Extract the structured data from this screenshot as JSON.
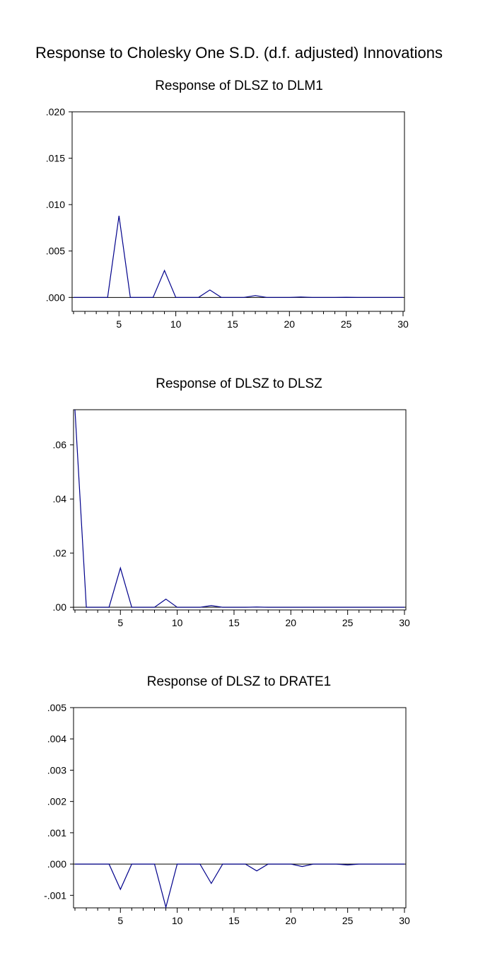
{
  "main_title": "Response to Cholesky One S.D. (d.f. adjusted) Innovations",
  "chart_data": [
    {
      "type": "line",
      "title": "Response of DLSZ to DLM1",
      "xlabel": "",
      "ylabel": "",
      "xlim": [
        1,
        30
      ],
      "ylim": [
        -0.0015,
        0.02
      ],
      "x_ticks": [
        5,
        10,
        15,
        20,
        25,
        30
      ],
      "y_ticks": [
        {
          "value": 0.0,
          "label": ".000"
        },
        {
          "value": 0.005,
          "label": ".005"
        },
        {
          "value": 0.01,
          "label": ".010"
        },
        {
          "value": 0.015,
          "label": ".015"
        },
        {
          "value": 0.02,
          "label": ".020"
        }
      ],
      "grid": false,
      "series": [
        {
          "color": "#00008b",
          "x": [
            1,
            2,
            3,
            4,
            5,
            6,
            7,
            8,
            9,
            10,
            11,
            12,
            13,
            14,
            15,
            16,
            17,
            18,
            19,
            20,
            21,
            22,
            23,
            24,
            25,
            26,
            27,
            28,
            29,
            30
          ],
          "values": [
            0,
            0,
            0,
            0,
            0.0088,
            0,
            0,
            0,
            0.0029,
            0,
            0,
            0,
            0.0008,
            0,
            0,
            0,
            0.0002,
            0,
            0,
            0,
            5e-05,
            0,
            0,
            0,
            2e-05,
            0,
            0,
            0,
            0,
            0
          ]
        }
      ]
    },
    {
      "type": "line",
      "title": "Response of DLSZ to DLSZ",
      "xlabel": "",
      "ylabel": "",
      "xlim": [
        1,
        30
      ],
      "ylim": [
        -0.001,
        0.073
      ],
      "x_ticks": [
        5,
        10,
        15,
        20,
        25,
        30
      ],
      "y_ticks": [
        {
          "value": 0.0,
          "label": ".00"
        },
        {
          "value": 0.02,
          "label": ".02"
        },
        {
          "value": 0.04,
          "label": ".04"
        },
        {
          "value": 0.06,
          "label": ".06"
        }
      ],
      "grid": false,
      "series": [
        {
          "color": "#00008b",
          "x": [
            1,
            2,
            3,
            4,
            5,
            6,
            7,
            8,
            9,
            10,
            11,
            12,
            13,
            14,
            15,
            16,
            17,
            18,
            19,
            20,
            21,
            22,
            23,
            24,
            25,
            26,
            27,
            28,
            29,
            30
          ],
          "values": [
            0.073,
            0,
            0,
            0,
            0.0145,
            0,
            0,
            0,
            0.003,
            0,
            0,
            0,
            0.0006,
            0,
            0,
            0,
            0.0001,
            0,
            0,
            0,
            0,
            0,
            0,
            0,
            0,
            0,
            0,
            0,
            0,
            0
          ]
        }
      ]
    },
    {
      "type": "line",
      "title": "Response of DLSZ to DRATE1",
      "xlabel": "",
      "ylabel": "",
      "xlim": [
        1,
        30
      ],
      "ylim": [
        -0.0014,
        0.005
      ],
      "x_ticks": [
        5,
        10,
        15,
        20,
        25,
        30
      ],
      "y_ticks": [
        {
          "value": -0.001,
          "label": "-.001"
        },
        {
          "value": 0.0,
          "label": ".000"
        },
        {
          "value": 0.001,
          "label": ".001"
        },
        {
          "value": 0.002,
          "label": ".002"
        },
        {
          "value": 0.003,
          "label": ".003"
        },
        {
          "value": 0.004,
          "label": ".004"
        },
        {
          "value": 0.005,
          "label": ".005"
        }
      ],
      "grid": false,
      "series": [
        {
          "color": "#00008b",
          "x": [
            1,
            2,
            3,
            4,
            5,
            6,
            7,
            8,
            9,
            10,
            11,
            12,
            13,
            14,
            15,
            16,
            17,
            18,
            19,
            20,
            21,
            22,
            23,
            24,
            25,
            26,
            27,
            28,
            29,
            30
          ],
          "values": [
            0,
            0,
            0,
            0,
            -0.00081,
            0,
            0,
            0,
            -0.00138,
            0,
            0,
            0,
            -0.00062,
            0,
            0,
            0,
            -0.00022,
            0,
            0,
            0,
            -8e-05,
            0,
            0,
            0,
            -3e-05,
            0,
            0,
            0,
            0,
            0
          ]
        }
      ]
    }
  ]
}
